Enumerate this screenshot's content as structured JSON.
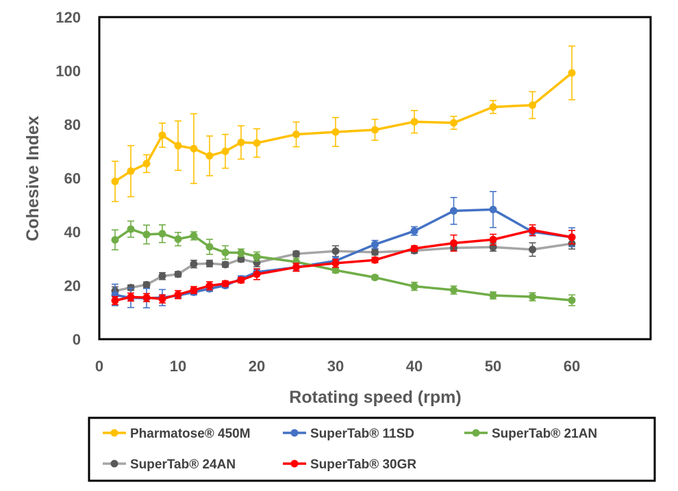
{
  "chart_data": {
    "type": "line",
    "title": "",
    "xlabel": "Rotating speed (rpm)",
    "ylabel": "Cohesive Index",
    "xlim": [
      0,
      70
    ],
    "ylim": [
      0,
      120
    ],
    "x_ticks": [
      0,
      10,
      20,
      30,
      40,
      50,
      60
    ],
    "y_ticks": [
      0,
      20,
      40,
      60,
      80,
      100,
      120
    ],
    "x": [
      2,
      4,
      6,
      8,
      10,
      12,
      14,
      16,
      18,
      20,
      25,
      30,
      35,
      40,
      45,
      50,
      55,
      60
    ],
    "grid": false,
    "legend_position": "bottom",
    "series": [
      {
        "name": "Pharmatose® 450M",
        "color": "#FFC000",
        "values": [
          58.8,
          62.6,
          65.4,
          76.0,
          72.1,
          71.0,
          68.3,
          70.0,
          73.3,
          73.1,
          76.3,
          77.2,
          78.0,
          81.0,
          80.6,
          86.5,
          87.2,
          99.2
        ],
        "errors": [
          7.5,
          9.5,
          3.3,
          4.5,
          9.2,
          13.0,
          7.4,
          6.3,
          6.2,
          5.3,
          4.6,
          5.4,
          3.9,
          4.2,
          2.4,
          2.4,
          5.0,
          10.0
        ]
      },
      {
        "name": "SuperTab® 11SD",
        "color": "#4472C4",
        "values": [
          16.5,
          15.4,
          15.3,
          15.5,
          16.3,
          17.5,
          18.8,
          20.0,
          22.5,
          25.0,
          26.8,
          29.2,
          35.3,
          40.3,
          47.8,
          48.3,
          40.0,
          38.0
        ],
        "errors": [
          4.0,
          3.6,
          3.6,
          3.0,
          0.9,
          1.0,
          1.0,
          0.9,
          1.1,
          1.2,
          1.3,
          1.4,
          1.5,
          1.6,
          5.0,
          6.7,
          1.5,
          3.5
        ]
      },
      {
        "name": "SuperTab® 21AN",
        "color": "#70AD47",
        "values": [
          37.0,
          41.0,
          39.0,
          39.3,
          37.3,
          38.5,
          34.4,
          32.3,
          32.2,
          30.8,
          28.8,
          25.7,
          23.0,
          19.7,
          18.3,
          16.3,
          15.8,
          14.5
        ],
        "errors": [
          3.7,
          3.0,
          3.5,
          3.3,
          2.5,
          1.5,
          2.8,
          2.5,
          1.4,
          1.7,
          1.4,
          1.0,
          0.8,
          1.5,
          1.5,
          1.3,
          1.5,
          2.0
        ]
      },
      {
        "name": "SuperTab® 24AN",
        "color": "#A5A5A5",
        "marker_color": "#595959",
        "values": [
          18.0,
          19.2,
          20.3,
          23.5,
          24.2,
          28.0,
          28.2,
          27.8,
          29.8,
          28.5,
          31.8,
          32.8,
          32.4,
          33.0,
          34.0,
          34.3,
          33.4,
          35.6
        ],
        "errors": [
          1.5,
          1.0,
          1.0,
          1.3,
          1.0,
          1.4,
          1.2,
          1.0,
          1.0,
          1.5,
          1.0,
          2.0,
          1.0,
          1.0,
          1.0,
          1.5,
          2.5,
          2.0
        ]
      },
      {
        "name": "SuperTab® 30GR",
        "color": "#FF0000",
        "values": [
          14.4,
          15.7,
          15.5,
          15.0,
          16.6,
          18.3,
          19.9,
          20.7,
          22.0,
          24.2,
          26.8,
          28.3,
          29.5,
          33.8,
          35.8,
          37.1,
          40.6,
          38.0
        ],
        "errors": [
          1.5,
          1.5,
          1.5,
          1.5,
          1.5,
          1.3,
          1.5,
          1.0,
          1.0,
          2.0,
          1.5,
          1.5,
          1.0,
          1.0,
          3.0,
          2.0,
          2.0,
          2.5
        ]
      }
    ]
  }
}
